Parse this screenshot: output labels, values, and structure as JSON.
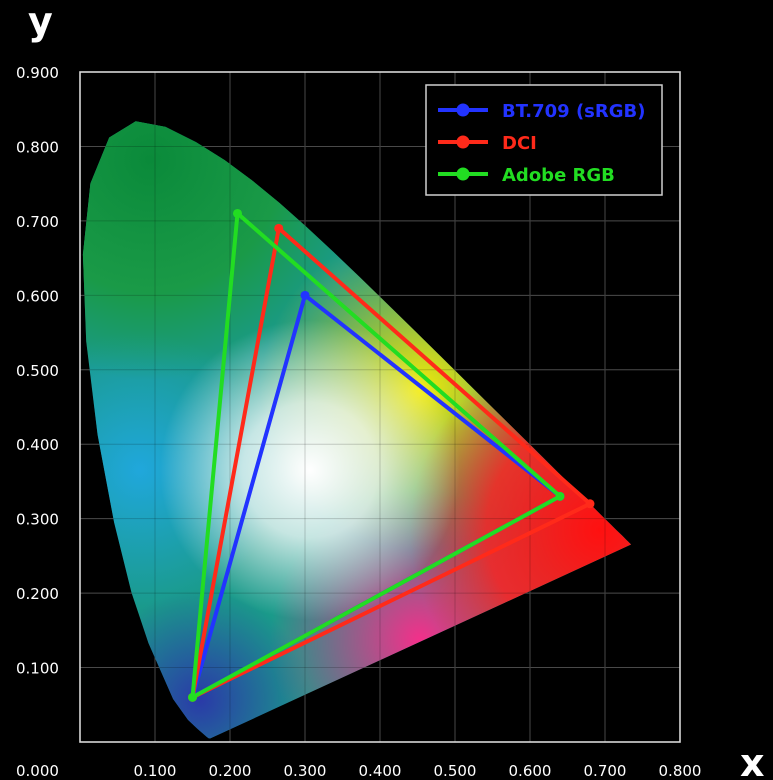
{
  "chart_data": {
    "type": "scatter",
    "xlabel": "x",
    "ylabel": "y",
    "xlim": [
      0.0,
      0.8
    ],
    "ylim": [
      0.0,
      0.9
    ],
    "grid": true,
    "legend_position": "top-right",
    "x_ticks": [
      "0.100",
      "0.200",
      "0.300",
      "0.400",
      "0.500",
      "0.600",
      "0.700",
      "0.800"
    ],
    "y_ticks": [
      "0.000",
      "0.100",
      "0.200",
      "0.300",
      "0.400",
      "0.500",
      "0.600",
      "0.700",
      "0.800",
      "0.900"
    ],
    "series": [
      {
        "name": "BT.709 (sRGB)",
        "color": "#2233ff",
        "points": [
          [
            0.64,
            0.33
          ],
          [
            0.3,
            0.6
          ],
          [
            0.15,
            0.06
          ]
        ]
      },
      {
        "name": "DCI",
        "color": "#ff2a1a",
        "points": [
          [
            0.68,
            0.32
          ],
          [
            0.265,
            0.69
          ],
          [
            0.15,
            0.06
          ]
        ]
      },
      {
        "name": "Adobe RGB",
        "color": "#22dd22",
        "points": [
          [
            0.64,
            0.33
          ],
          [
            0.21,
            0.71
          ],
          [
            0.15,
            0.06
          ]
        ]
      }
    ],
    "locus": [
      [
        0.1741,
        0.005
      ],
      [
        0.1738,
        0.0049
      ],
      [
        0.1736,
        0.0049
      ],
      [
        0.1733,
        0.0048
      ],
      [
        0.1726,
        0.0048
      ],
      [
        0.1714,
        0.0051
      ],
      [
        0.1689,
        0.0069
      ],
      [
        0.1644,
        0.0109
      ],
      [
        0.1566,
        0.0177
      ],
      [
        0.144,
        0.0297
      ],
      [
        0.1241,
        0.0578
      ],
      [
        0.0913,
        0.1327
      ],
      [
        0.0687,
        0.2007
      ],
      [
        0.0454,
        0.295
      ],
      [
        0.0235,
        0.4127
      ],
      [
        0.0082,
        0.5384
      ],
      [
        0.0039,
        0.6548
      ],
      [
        0.0139,
        0.7502
      ],
      [
        0.0389,
        0.812
      ],
      [
        0.0743,
        0.8338
      ],
      [
        0.1142,
        0.8262
      ],
      [
        0.1547,
        0.8059
      ],
      [
        0.1929,
        0.7816
      ],
      [
        0.2296,
        0.7543
      ],
      [
        0.2658,
        0.7243
      ],
      [
        0.3016,
        0.6923
      ],
      [
        0.3373,
        0.6589
      ],
      [
        0.3731,
        0.6245
      ],
      [
        0.4087,
        0.5896
      ],
      [
        0.4441,
        0.5547
      ],
      [
        0.4788,
        0.5202
      ],
      [
        0.5125,
        0.4866
      ],
      [
        0.5448,
        0.4544
      ],
      [
        0.5752,
        0.4242
      ],
      [
        0.6029,
        0.3965
      ],
      [
        0.627,
        0.3725
      ],
      [
        0.6482,
        0.3514
      ],
      [
        0.6658,
        0.334
      ],
      [
        0.6801,
        0.3197
      ],
      [
        0.6915,
        0.3083
      ],
      [
        0.7006,
        0.2993
      ],
      [
        0.7079,
        0.292
      ],
      [
        0.714,
        0.2859
      ],
      [
        0.719,
        0.2809
      ],
      [
        0.723,
        0.277
      ],
      [
        0.726,
        0.274
      ],
      [
        0.7283,
        0.2717
      ],
      [
        0.73,
        0.27
      ],
      [
        0.7311,
        0.2689
      ],
      [
        0.732,
        0.268
      ],
      [
        0.7327,
        0.2673
      ],
      [
        0.7334,
        0.2666
      ],
      [
        0.734,
        0.266
      ],
      [
        0.7344,
        0.2656
      ],
      [
        0.7346,
        0.2654
      ],
      [
        0.7347,
        0.2653
      ]
    ]
  }
}
